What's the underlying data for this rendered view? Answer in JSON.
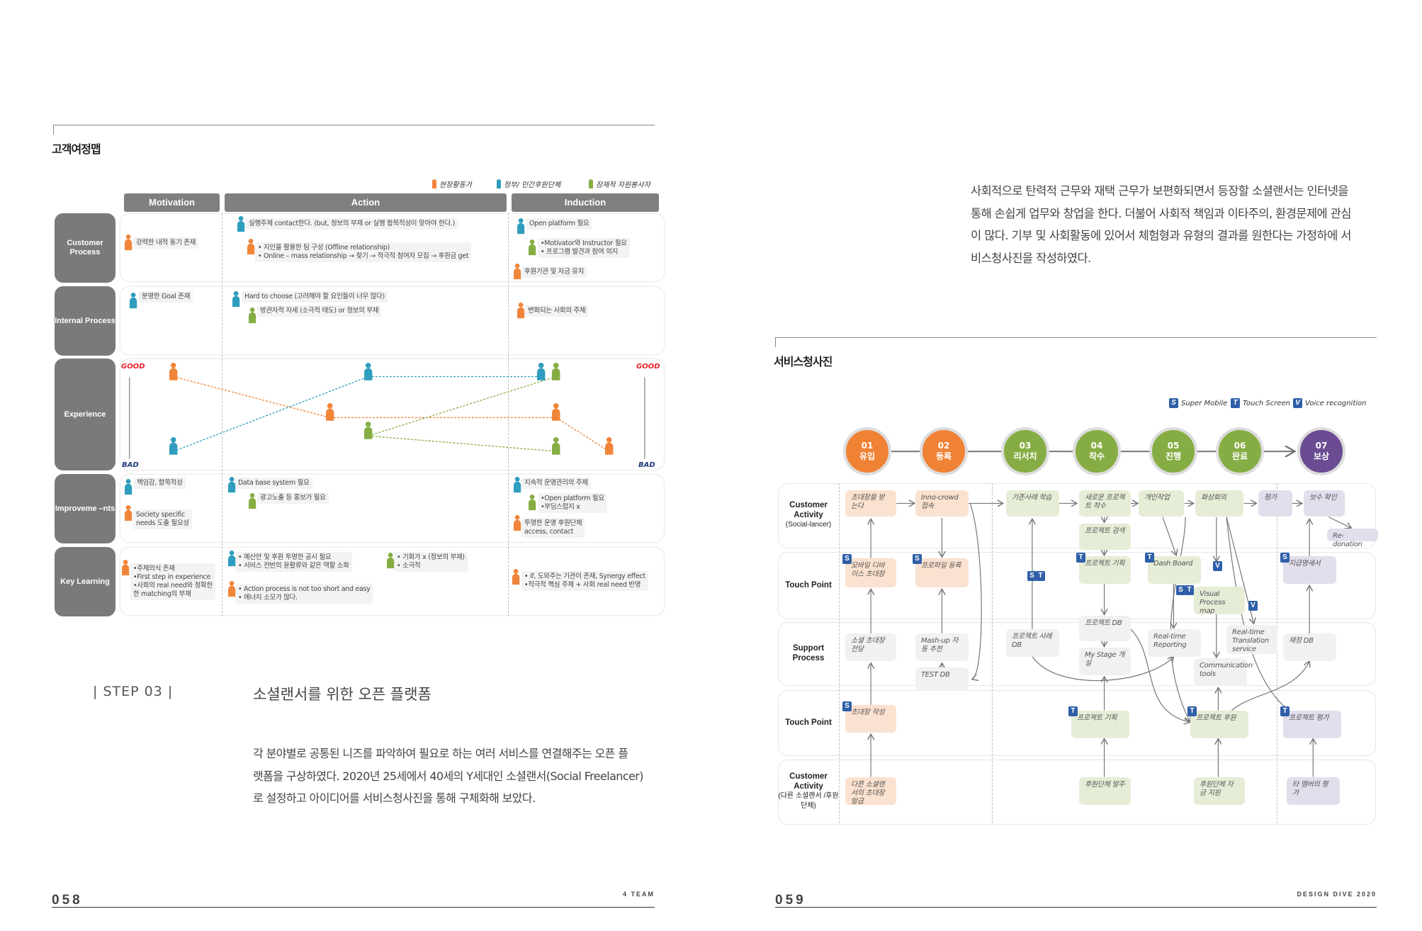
{
  "left_page": {
    "section_title": "고객여정맵",
    "legend": [
      {
        "label": "현장활동가",
        "color": "#f0853a"
      },
      {
        "label": "정부/ 민간후원단체",
        "color": "#2f9dbd"
      },
      {
        "label": "잠재적 자원봉사자",
        "color": "#86ad43"
      }
    ],
    "columns": [
      "Motivation",
      "Action",
      "Induction"
    ],
    "rows": [
      "Customer Process",
      "Internal Process",
      "Experience",
      "Improveme –nts",
      "Key Learning"
    ],
    "cards": [
      {
        "persona": "orange",
        "lines": [
          "강력한 내적 동기 존재"
        ]
      },
      {
        "persona": "blue",
        "lines": [
          "실행주체 contact한다. (but, 정보의 부재 or 실행 합목적성이 맞아야 한다.)"
        ]
      },
      {
        "persona": "orange",
        "lines": [
          "• 지인을 활용한 팀 구성 (Offline relationship)",
          "• Online – mass relationship → 찾기 → 적극적 참여자 모집 → 후원금 get"
        ]
      },
      {
        "persona": "blue",
        "lines": [
          "Open platform 필요"
        ]
      },
      {
        "persona": "green",
        "lines": [
          "•Motivator와 Instructor 필요",
          "• 프로그램 발견과 참여 의지"
        ]
      },
      {
        "persona": "orange",
        "lines": [
          "후원기관 및 자금 유치"
        ]
      },
      {
        "persona": "blue",
        "lines": [
          "분명한 Goal 존재"
        ]
      },
      {
        "persona": "blue",
        "lines": [
          "Hard to choose (고려해야 할 요인들이 너무 많다)"
        ]
      },
      {
        "persona": "green",
        "lines": [
          "방관자적 자세 (소극적 태도) or 정보의 부재"
        ]
      },
      {
        "persona": "orange",
        "lines": [
          "변화되는 사회의 주체"
        ]
      },
      {
        "persona": "blue",
        "lines": [
          "책임감, 합목적성"
        ]
      },
      {
        "persona": "orange",
        "lines": [
          "Society specific",
          "needs 도출 필요성"
        ]
      },
      {
        "persona": "blue",
        "lines": [
          "Data base system 필요"
        ]
      },
      {
        "persona": "green",
        "lines": [
          "광고노출 등 홍보가 필요"
        ]
      },
      {
        "persona": "blue",
        "lines": [
          "지속적 운영관리의 주체"
        ]
      },
      {
        "persona": "green",
        "lines": [
          "•Open platform 필요",
          "•부딤스럽지 x"
        ]
      },
      {
        "persona": "orange",
        "lines": [
          "투명한 운영 후원단체",
          "access, contact"
        ]
      },
      {
        "persona": "orange",
        "lines": [
          "•주체의식 존재",
          "•First step in experience",
          "•사회의 real need와 정확한",
          "한  matching의 부재"
        ]
      },
      {
        "persona": "blue",
        "lines": [
          "• 예산안 및 후원 투명한 공시 필요",
          "• 서비스 전반의 윤활류와 같은 역할 소화"
        ]
      },
      {
        "persona": "green",
        "lines": [
          "• 기회가 x (정보의 부재)",
          "• 소극적"
        ]
      },
      {
        "persona": "orange",
        "lines": [
          "• Action process is not too short and easy",
          "• 에너지 소모가 많다."
        ]
      },
      {
        "persona": "orange",
        "lines": [
          "• if, 도와주는 기관이 존재, Synergy effect",
          "•적극적 핵심 주체 + 사회 real need 반영"
        ]
      }
    ],
    "experience": {
      "good_label": "GOOD",
      "bad_label": "BAD",
      "series": [
        {
          "persona": "orange",
          "color": "#f0853a",
          "stages": [
            "Motivation",
            "Action",
            "Induction",
            "Induction"
          ],
          "levels": [
            "high",
            "mid",
            "mid",
            "low"
          ]
        },
        {
          "persona": "blue",
          "color": "#2f9dbd",
          "stages": [
            "Motivation",
            "Action",
            "Induction"
          ],
          "levels": [
            "low",
            "high",
            "high"
          ]
        },
        {
          "persona": "green",
          "color": "#86ad43",
          "stages": [
            "Action",
            "Induction",
            "Induction"
          ],
          "levels": [
            "low-mid",
            "high",
            "low"
          ]
        }
      ]
    },
    "step_label": "| STEP  03 |",
    "step_title": "소셜랜서를 위한 오픈 플랫폼",
    "step_paragraph": [
      "각 분야별로 공통된 니즈를 파악하여 필요로 하는 여러 서비스를 연결해주는 오픈 플",
      "랫폼을 구상하였다. 2020년 25세에서 40세의 Y세대인 소셜랜서(Social Freelancer)",
      "로 설정하고 아이디어를 서비스청사진을 통해 구체화해 보았다."
    ],
    "page_number": "058",
    "footer_label": "4 TEAM"
  },
  "right_page": {
    "intro_paragraph": [
      "사회적으로 탄력적 근무와 재택 근무가 보편화되면서 등장할 소셜랜서는 인터넷을",
      "통해 손쉽게 업무와 창업을 한다. 더불어 사회적 책임과 이타주의, 환경문제에 관심",
      "이 많다. 기부 및 사회활동에 있어서 체험형과 유형의 결과를 원한다는 가정하에 서",
      "비스청사진을 작성하였다."
    ],
    "section_title": "서비스청사진",
    "legend": [
      {
        "badge": "S",
        "label": "Super Mobile"
      },
      {
        "badge": "T",
        "label": "Touch Screen"
      },
      {
        "badge": "V",
        "label": "Voice recognition"
      }
    ],
    "stages": [
      {
        "num": "01",
        "label": "유입",
        "color": "#f08236"
      },
      {
        "num": "02",
        "label": "등록",
        "color": "#f08236"
      },
      {
        "num": "03",
        "label": "리서치",
        "color": "#86ad43"
      },
      {
        "num": "04",
        "label": "착수",
        "color": "#86ad43"
      },
      {
        "num": "05",
        "label": "진행",
        "color": "#86ad43"
      },
      {
        "num": "06",
        "label": "완료",
        "color": "#86ad43"
      },
      {
        "num": "07",
        "label": "보상",
        "color": "#6b4c93"
      }
    ],
    "rows": [
      {
        "title": "Customer Activity",
        "sub": "(Social-lancer)"
      },
      {
        "title": "Touch Point",
        "sub": ""
      },
      {
        "title": "Support Process",
        "sub": ""
      },
      {
        "title": "Touch Point",
        "sub": ""
      },
      {
        "title": "Customer Activity",
        "sub": "(다른 소셜랜서 /후원단체)"
      }
    ],
    "boxes": [
      {
        "text": "초대장을 받는다",
        "tone": "orange"
      },
      {
        "text": "Inno-crowd 접속",
        "tone": "orange"
      },
      {
        "text": "기존사례 학습",
        "tone": "green"
      },
      {
        "text": "새로운 프로젝트 착수",
        "tone": "green"
      },
      {
        "text": "개인작업",
        "tone": "green"
      },
      {
        "text": "화상회의",
        "tone": "green"
      },
      {
        "text": "평가",
        "tone": "purple"
      },
      {
        "text": "보수 확인",
        "tone": "purple"
      },
      {
        "text": "프로젝트 검색",
        "tone": "green"
      },
      {
        "text": "Re-donation",
        "tone": "purple"
      },
      {
        "text": "모바일 디바이스 초대장",
        "tone": "orange",
        "badges": [
          "S"
        ]
      },
      {
        "text": "프로파일 등록",
        "tone": "orange",
        "badges": [
          "S"
        ]
      },
      {
        "text": "프로젝트 기획",
        "tone": "green",
        "badges": [
          "T"
        ]
      },
      {
        "text": "Dash Board",
        "tone": "green",
        "badges": [
          "T"
        ]
      },
      {
        "text": "Visual Process map",
        "tone": "green",
        "badges": [
          "S",
          "T"
        ]
      },
      {
        "text": "지급명세서",
        "tone": "purple",
        "badges": [
          "S"
        ]
      },
      {
        "text": "소셜 초대장 전달",
        "tone": "grey"
      },
      {
        "text": "Mash-up 자동 추천",
        "tone": "grey"
      },
      {
        "text": "TEST DB",
        "tone": "grey"
      },
      {
        "text": "프로젝트 사례 DB",
        "tone": "grey",
        "badges": [
          "S",
          "T"
        ]
      },
      {
        "text": "프로젝트 DB",
        "tone": "grey"
      },
      {
        "text": "My Stage 개설",
        "tone": "grey"
      },
      {
        "text": "Real-time Reporting",
        "tone": "grey"
      },
      {
        "text": "Real-time Translation service",
        "tone": "grey",
        "badges": [
          "V"
        ]
      },
      {
        "text": "Communication tools",
        "tone": "grey",
        "badges": [
          "V"
        ]
      },
      {
        "text": "재정 DB",
        "tone": "grey"
      },
      {
        "text": "초대장 작성",
        "tone": "orange",
        "badges": [
          "S"
        ]
      },
      {
        "text": "프로젝트 기획",
        "tone": "green",
        "badges": [
          "T"
        ]
      },
      {
        "text": "프로젝트 후원",
        "tone": "green",
        "badges": [
          "T"
        ]
      },
      {
        "text": "프로젝트 평가",
        "tone": "purple",
        "badges": [
          "T"
        ]
      },
      {
        "text": "다른 소셜랜서의 초대장 발급",
        "tone": "orange"
      },
      {
        "text": "후원단체 발주",
        "tone": "green"
      },
      {
        "text": "후원단체 자금 지원",
        "tone": "green"
      },
      {
        "text": "타 멤버의 평가",
        "tone": "purple"
      }
    ],
    "page_number": "059",
    "footer_label": "DESIGN DIVE 2020"
  },
  "colors": {
    "persona_orange": "#f0853a",
    "persona_blue": "#2f9dbd",
    "persona_green": "#86ad43",
    "box_orange": "#fbe1cf",
    "box_green": "#e6edd7",
    "box_purple": "#e3deec",
    "box_grey": "#f0f1f2",
    "badge": "#2f5fa8"
  }
}
